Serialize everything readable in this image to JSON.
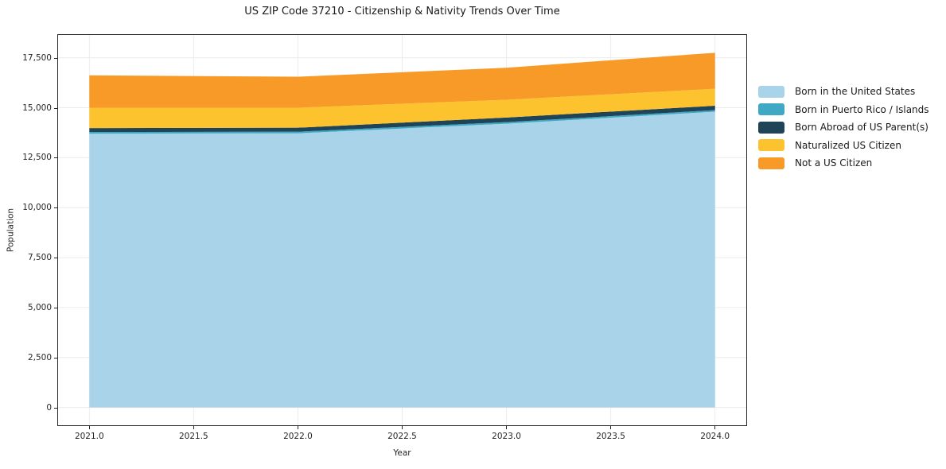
{
  "title": "US ZIP Code 37210 - Citizenship & Nativity Trends Over Time",
  "chart_data": {
    "type": "area",
    "stacked": true,
    "title": "US ZIP Code 37210 - Citizenship & Nativity Trends Over Time",
    "xlabel": "Year",
    "ylabel": "Population",
    "x": [
      2021,
      2022,
      2023,
      2024
    ],
    "series": [
      {
        "name": "Born in the United States",
        "color": "#a8d3e9",
        "values": [
          13700,
          13720,
          14200,
          14800
        ]
      },
      {
        "name": "Born in Puerto Rico / Islands",
        "color": "#3fa8c4",
        "values": [
          80,
          80,
          80,
          80
        ]
      },
      {
        "name": "Born Abroad of US Parent(s)",
        "color": "#1f4458",
        "values": [
          200,
          200,
          230,
          220
        ]
      },
      {
        "name": "Naturalized US Citizen",
        "color": "#fcc32e",
        "values": [
          1020,
          1000,
          890,
          850
        ]
      },
      {
        "name": "Not a US Citizen",
        "color": "#f89a27",
        "values": [
          1620,
          1550,
          1600,
          1800
        ]
      }
    ],
    "xticks": [
      2021.0,
      2021.5,
      2022.0,
      2022.5,
      2023.0,
      2023.5,
      2024.0
    ],
    "xtick_labels": [
      "2021.0",
      "2021.5",
      "2022.0",
      "2022.5",
      "2023.0",
      "2023.5",
      "2024.0"
    ],
    "yticks": [
      0,
      2500,
      5000,
      7500,
      10000,
      12500,
      15000,
      17500
    ],
    "ytick_labels": [
      "0",
      "2,500",
      "5,000",
      "7,500",
      "10,000",
      "12,500",
      "15,000",
      "17,500"
    ],
    "xlim": [
      2020.85,
      2024.15
    ],
    "ylim": [
      -890,
      18640
    ],
    "grid": true,
    "grid_color": "#ececec",
    "legend_position": "outside-right",
    "legend_frame": false
  }
}
